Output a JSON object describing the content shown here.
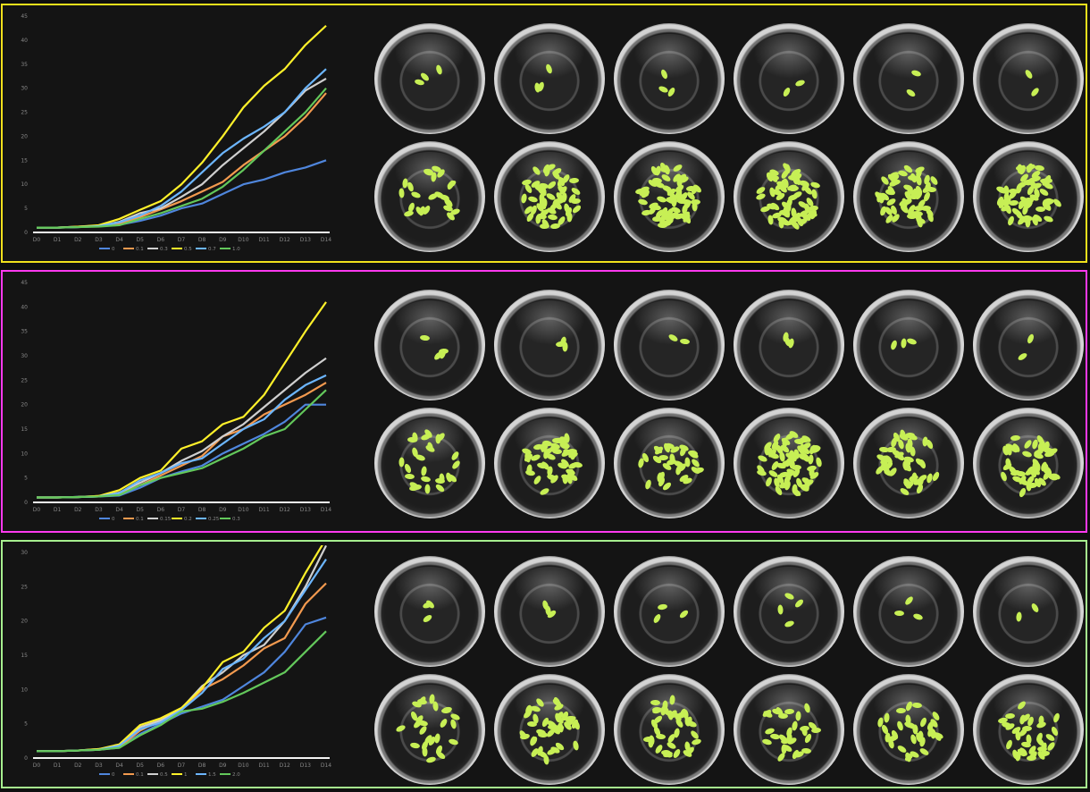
{
  "colors": {
    "panel_borders": [
      "#f2e11c",
      "#ff39ef",
      "#a7ef8f"
    ],
    "series": [
      "#4f86dd",
      "#f39a4f",
      "#cfcfcf",
      "#fff12a",
      "#6cb6ff",
      "#63c85b"
    ],
    "axis": "#f2f2f2",
    "tick_text": "#888888",
    "plant": "#c7ef55"
  },
  "icons": [
    "petri-dish-icon",
    "duckweed-frond-icon"
  ],
  "panels": [
    {
      "name": "top",
      "chart_data": {
        "type": "line",
        "categories": [
          "D0",
          "D1",
          "D2",
          "D3",
          "D4",
          "D5",
          "D6",
          "D7",
          "D8",
          "D9",
          "D10",
          "D11",
          "D12",
          "D13",
          "D14"
        ],
        "y_ticks": [
          "0",
          "5",
          "10",
          "15",
          "20",
          "25",
          "30",
          "35",
          "40",
          "45"
        ],
        "series": [
          {
            "name": "0",
            "values": [
              1,
              1,
              1.2,
              1.4,
              1.6,
              2.4,
              3.5,
              5,
              6,
              8,
              10,
              11,
              12.5,
              13.5,
              15
            ]
          },
          {
            "name": "0.1",
            "values": [
              1,
              1,
              1.2,
              1.4,
              1.8,
              3.2,
              4.8,
              6.5,
              8.5,
              10.5,
              14,
              17,
              20,
              24,
              29
            ]
          },
          {
            "name": "0.3",
            "values": [
              1,
              1,
              1.1,
              1.3,
              2.2,
              4,
              5,
              7.4,
              10,
              14,
              17.5,
              21,
              25,
              29.5,
              32
            ]
          },
          {
            "name": "0.5",
            "values": [
              1,
              1,
              1.2,
              1.5,
              2.8,
              4.7,
              6.5,
              10,
              14.5,
              20,
              26,
              30.5,
              34,
              39,
              43
            ]
          },
          {
            "name": "0.7",
            "values": [
              1,
              1,
              1.1,
              1.3,
              2.1,
              3.5,
              5.5,
              8.5,
              12.5,
              16.5,
              19.5,
              22,
              25,
              30,
              34
            ]
          },
          {
            "name": "1.0",
            "values": [
              1,
              1,
              1.1,
              1.2,
              1.5,
              2.8,
              4,
              5.5,
              7,
              9.5,
              13,
              17,
              21,
              25,
              30
            ]
          }
        ],
        "ylim": [
          0,
          45
        ]
      },
      "dishes": [
        {
          "fronds": 3
        },
        {
          "fronds": 3
        },
        {
          "fronds": 3
        },
        {
          "fronds": 2
        },
        {
          "fronds": 2
        },
        {
          "fronds": 2
        },
        {
          "fronds": 24
        },
        {
          "fronds": 52
        },
        {
          "fronds": 64
        },
        {
          "fronds": 64
        },
        {
          "fronds": 58
        },
        {
          "fronds": 60
        }
      ]
    },
    {
      "name": "middle",
      "chart_data": {
        "type": "line",
        "categories": [
          "D0",
          "D1",
          "D2",
          "D3",
          "D4",
          "D5",
          "D6",
          "D7",
          "D8",
          "D9",
          "D10",
          "D11",
          "D12",
          "D13",
          "D14"
        ],
        "y_ticks": [
          "0",
          "5",
          "10",
          "15",
          "20",
          "25",
          "30",
          "35",
          "40",
          "45"
        ],
        "series": [
          {
            "name": "0",
            "values": [
              1,
              1,
              1.1,
              1.2,
              1.4,
              3,
              5,
              6.3,
              7.5,
              10,
              12,
              14,
              16.5,
              20,
              20
            ]
          },
          {
            "name": "0.1",
            "values": [
              1,
              1,
              1.1,
              1.3,
              1.7,
              3.5,
              5.5,
              7.5,
              9.5,
              13.5,
              15,
              18,
              20,
              22,
              24.5
            ]
          },
          {
            "name": "0.15",
            "values": [
              1,
              1,
              1.1,
              1.2,
              2,
              4,
              6,
              8.5,
              10.5,
              13.5,
              16,
              19.5,
              23,
              26.5,
              29.5
            ]
          },
          {
            "name": "0.2",
            "values": [
              1,
              1,
              1.1,
              1.3,
              2.5,
              5,
              6.5,
              11,
              12.5,
              16,
              17.5,
              22,
              28.5,
              35,
              41
            ]
          },
          {
            "name": "0.25",
            "values": [
              1,
              1,
              1.1,
              1.2,
              1.9,
              4.5,
              6,
              8,
              9,
              12,
              15,
              17,
              21,
              24,
              26
            ]
          },
          {
            "name": "0.3",
            "values": [
              1,
              1,
              1.1,
              1.2,
              1.5,
              3.5,
              5,
              6,
              7,
              9,
              11,
              13.5,
              15,
              19,
              23
            ]
          }
        ],
        "ylim": [
          0,
          45
        ]
      },
      "dishes": [
        {
          "fronds": 4
        },
        {
          "fronds": 3
        },
        {
          "fronds": 2
        },
        {
          "fronds": 3
        },
        {
          "fronds": 3
        },
        {
          "fronds": 2
        },
        {
          "fronds": 26
        },
        {
          "fronds": 44
        },
        {
          "fronds": 30
        },
        {
          "fronds": 70
        },
        {
          "fronds": 46
        },
        {
          "fronds": 48
        }
      ]
    },
    {
      "name": "bottom",
      "chart_data": {
        "type": "line",
        "categories": [
          "D0",
          "D1",
          "D2",
          "D3",
          "D4",
          "D5",
          "D6",
          "D7",
          "D8",
          "D9",
          "D10",
          "D11",
          "D12",
          "D13",
          "D14"
        ],
        "y_ticks": [
          "0",
          "5",
          "10",
          "15",
          "20",
          "25",
          "30"
        ],
        "series": [
          {
            "name": "0",
            "values": [
              1,
              1,
              1.1,
              1.2,
              1.5,
              3.5,
              5,
              6.5,
              7.5,
              8.5,
              10.5,
              12.5,
              15.5,
              19.5,
              20.5
            ]
          },
          {
            "name": "0.1",
            "values": [
              1,
              1,
              1.1,
              1.2,
              1.6,
              4,
              5.5,
              7,
              10,
              11.5,
              13.5,
              16,
              17.5,
              22.5,
              25.5
            ]
          },
          {
            "name": "0.5",
            "values": [
              1,
              1,
              1.1,
              1.3,
              1.8,
              4.5,
              5.5,
              7.2,
              10.5,
              12.5,
              15,
              16.5,
              20,
              25,
              31
            ]
          },
          {
            "name": "1",
            "values": [
              1,
              1,
              1.1,
              1.3,
              2,
              4.8,
              5.8,
              7.3,
              10.2,
              14,
              15.5,
              19,
              21.5,
              27,
              32
            ]
          },
          {
            "name": "1.5",
            "values": [
              1,
              1,
              1.1,
              1.2,
              1.8,
              4.2,
              5.2,
              7,
              9.5,
              13,
              14.5,
              17.5,
              20,
              24.5,
              29
            ]
          },
          {
            "name": "2.0",
            "values": [
              1,
              1,
              1.1,
              1.2,
              1.5,
              3.3,
              4.8,
              6.8,
              7.2,
              8.2,
              9.5,
              11,
              12.5,
              15.5,
              18.5
            ]
          }
        ],
        "ylim": [
          0,
          30
        ]
      },
      "dishes": [
        {
          "fronds": 3
        },
        {
          "fronds": 3
        },
        {
          "fronds": 3
        },
        {
          "fronds": 4
        },
        {
          "fronds": 3
        },
        {
          "fronds": 2
        },
        {
          "fronds": 26
        },
        {
          "fronds": 42
        },
        {
          "fronds": 38
        },
        {
          "fronds": 28
        },
        {
          "fronds": 32
        },
        {
          "fronds": 34
        }
      ]
    }
  ]
}
